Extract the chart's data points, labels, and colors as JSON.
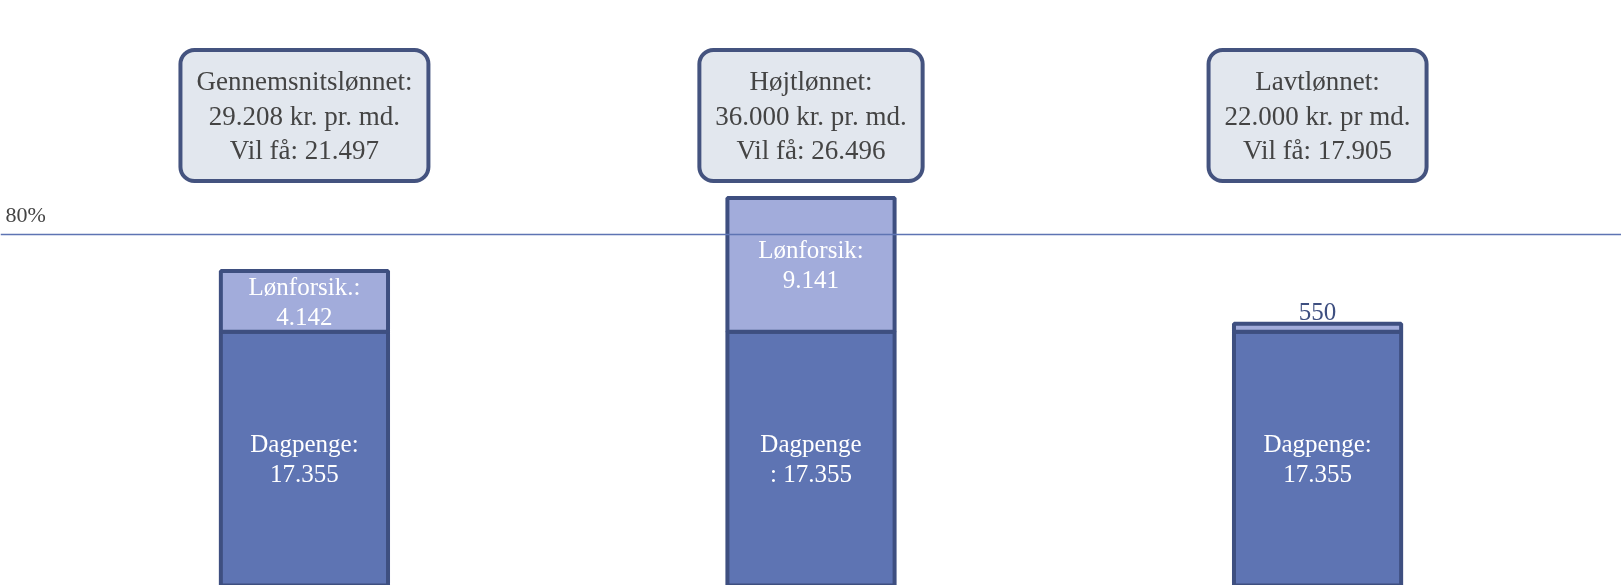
{
  "chart_data": {
    "type": "bar",
    "stacked": true,
    "categories": [
      null,
      null,
      null
    ],
    "series": [
      {
        "color": "#5e74b3",
        "values": [
          17355,
          17355,
          17355
        ],
        "value_labels": [
          "Dagpenge:\n17.355",
          "Dagpenge\n: 17.355",
          "Dagpenge:\n17.355"
        ]
      },
      {
        "color": "#a2acdb",
        "values": [
          4142,
          9141,
          550
        ],
        "value_labels": [
          "Lønforsik.:\n4.142",
          "Lønforsik:\n9.141",
          "550"
        ]
      }
    ],
    "ylim": [
      0,
      40000
    ],
    "tick_labels": false,
    "grid": false,
    "ref_lines": [
      {
        "axis": "y",
        "value": 24000,
        "color": "#5e74b3"
      }
    ],
    "annotations": [
      "80%",
      "Gennemsnitslønnet:\n29.208 kr. pr. md.\nVil få: 21.497",
      "Højtlønnet:\n36.000 kr. pr. md.\nVil få: 26.496",
      "Lavtlønnet:\n22.000 kr. pr md.\nVil få: 17.905"
    ]
  }
}
